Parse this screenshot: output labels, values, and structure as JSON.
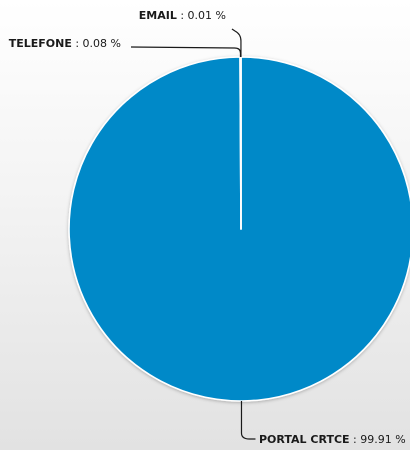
{
  "chart_data": {
    "type": "pie",
    "slices": [
      {
        "label": "PORTAL CRTCE",
        "value": 99.91,
        "display": "99.91 %",
        "color": "#0489c8"
      },
      {
        "label": "TELEFONE",
        "value": 0.08,
        "display": "0.08 %",
        "color": "#0489c8"
      },
      {
        "label": "EMAIL",
        "value": 0.01,
        "display": "0.01 %",
        "color": "#0489c8"
      }
    ],
    "separator": " : ",
    "slice_border_color": "#ffffff",
    "legend": "none",
    "title": ""
  }
}
